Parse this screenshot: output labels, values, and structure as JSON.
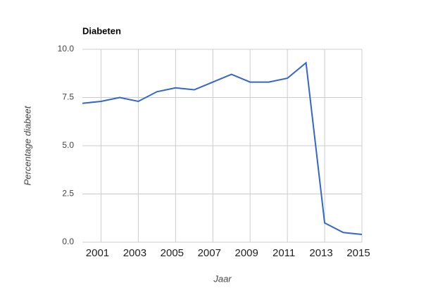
{
  "chart_data": {
    "type": "line",
    "title": "Diabeten",
    "x_label": "Jaar",
    "y_label": "Percentage diabeet",
    "x": [
      2000,
      2001,
      2002,
      2003,
      2004,
      2005,
      2006,
      2007,
      2008,
      2009,
      2010,
      2011,
      2012,
      2013,
      2014,
      2015
    ],
    "series": [
      {
        "color": "#3366cc",
        "values": [
          7.2,
          7.3,
          7.5,
          7.3,
          7.8,
          8.0,
          7.9,
          8.3,
          8.7,
          8.3,
          8.3,
          8.5,
          9.3,
          1.0,
          0.5,
          0.4
        ]
      }
    ],
    "xlim": [
      2000,
      2015
    ],
    "xticks": [
      2001,
      2003,
      2005,
      2007,
      2009,
      2011,
      2013,
      2015
    ],
    "ylim": [
      0,
      10
    ],
    "yticks": [
      {
        "value": 0,
        "label": "0.0"
      },
      {
        "value": 2.5,
        "label": "2.5"
      },
      {
        "value": 5,
        "label": "5.0"
      },
      {
        "value": 7.5,
        "label": "7.5"
      },
      {
        "value": 10,
        "label": "10.0"
      }
    ],
    "grid": true
  }
}
